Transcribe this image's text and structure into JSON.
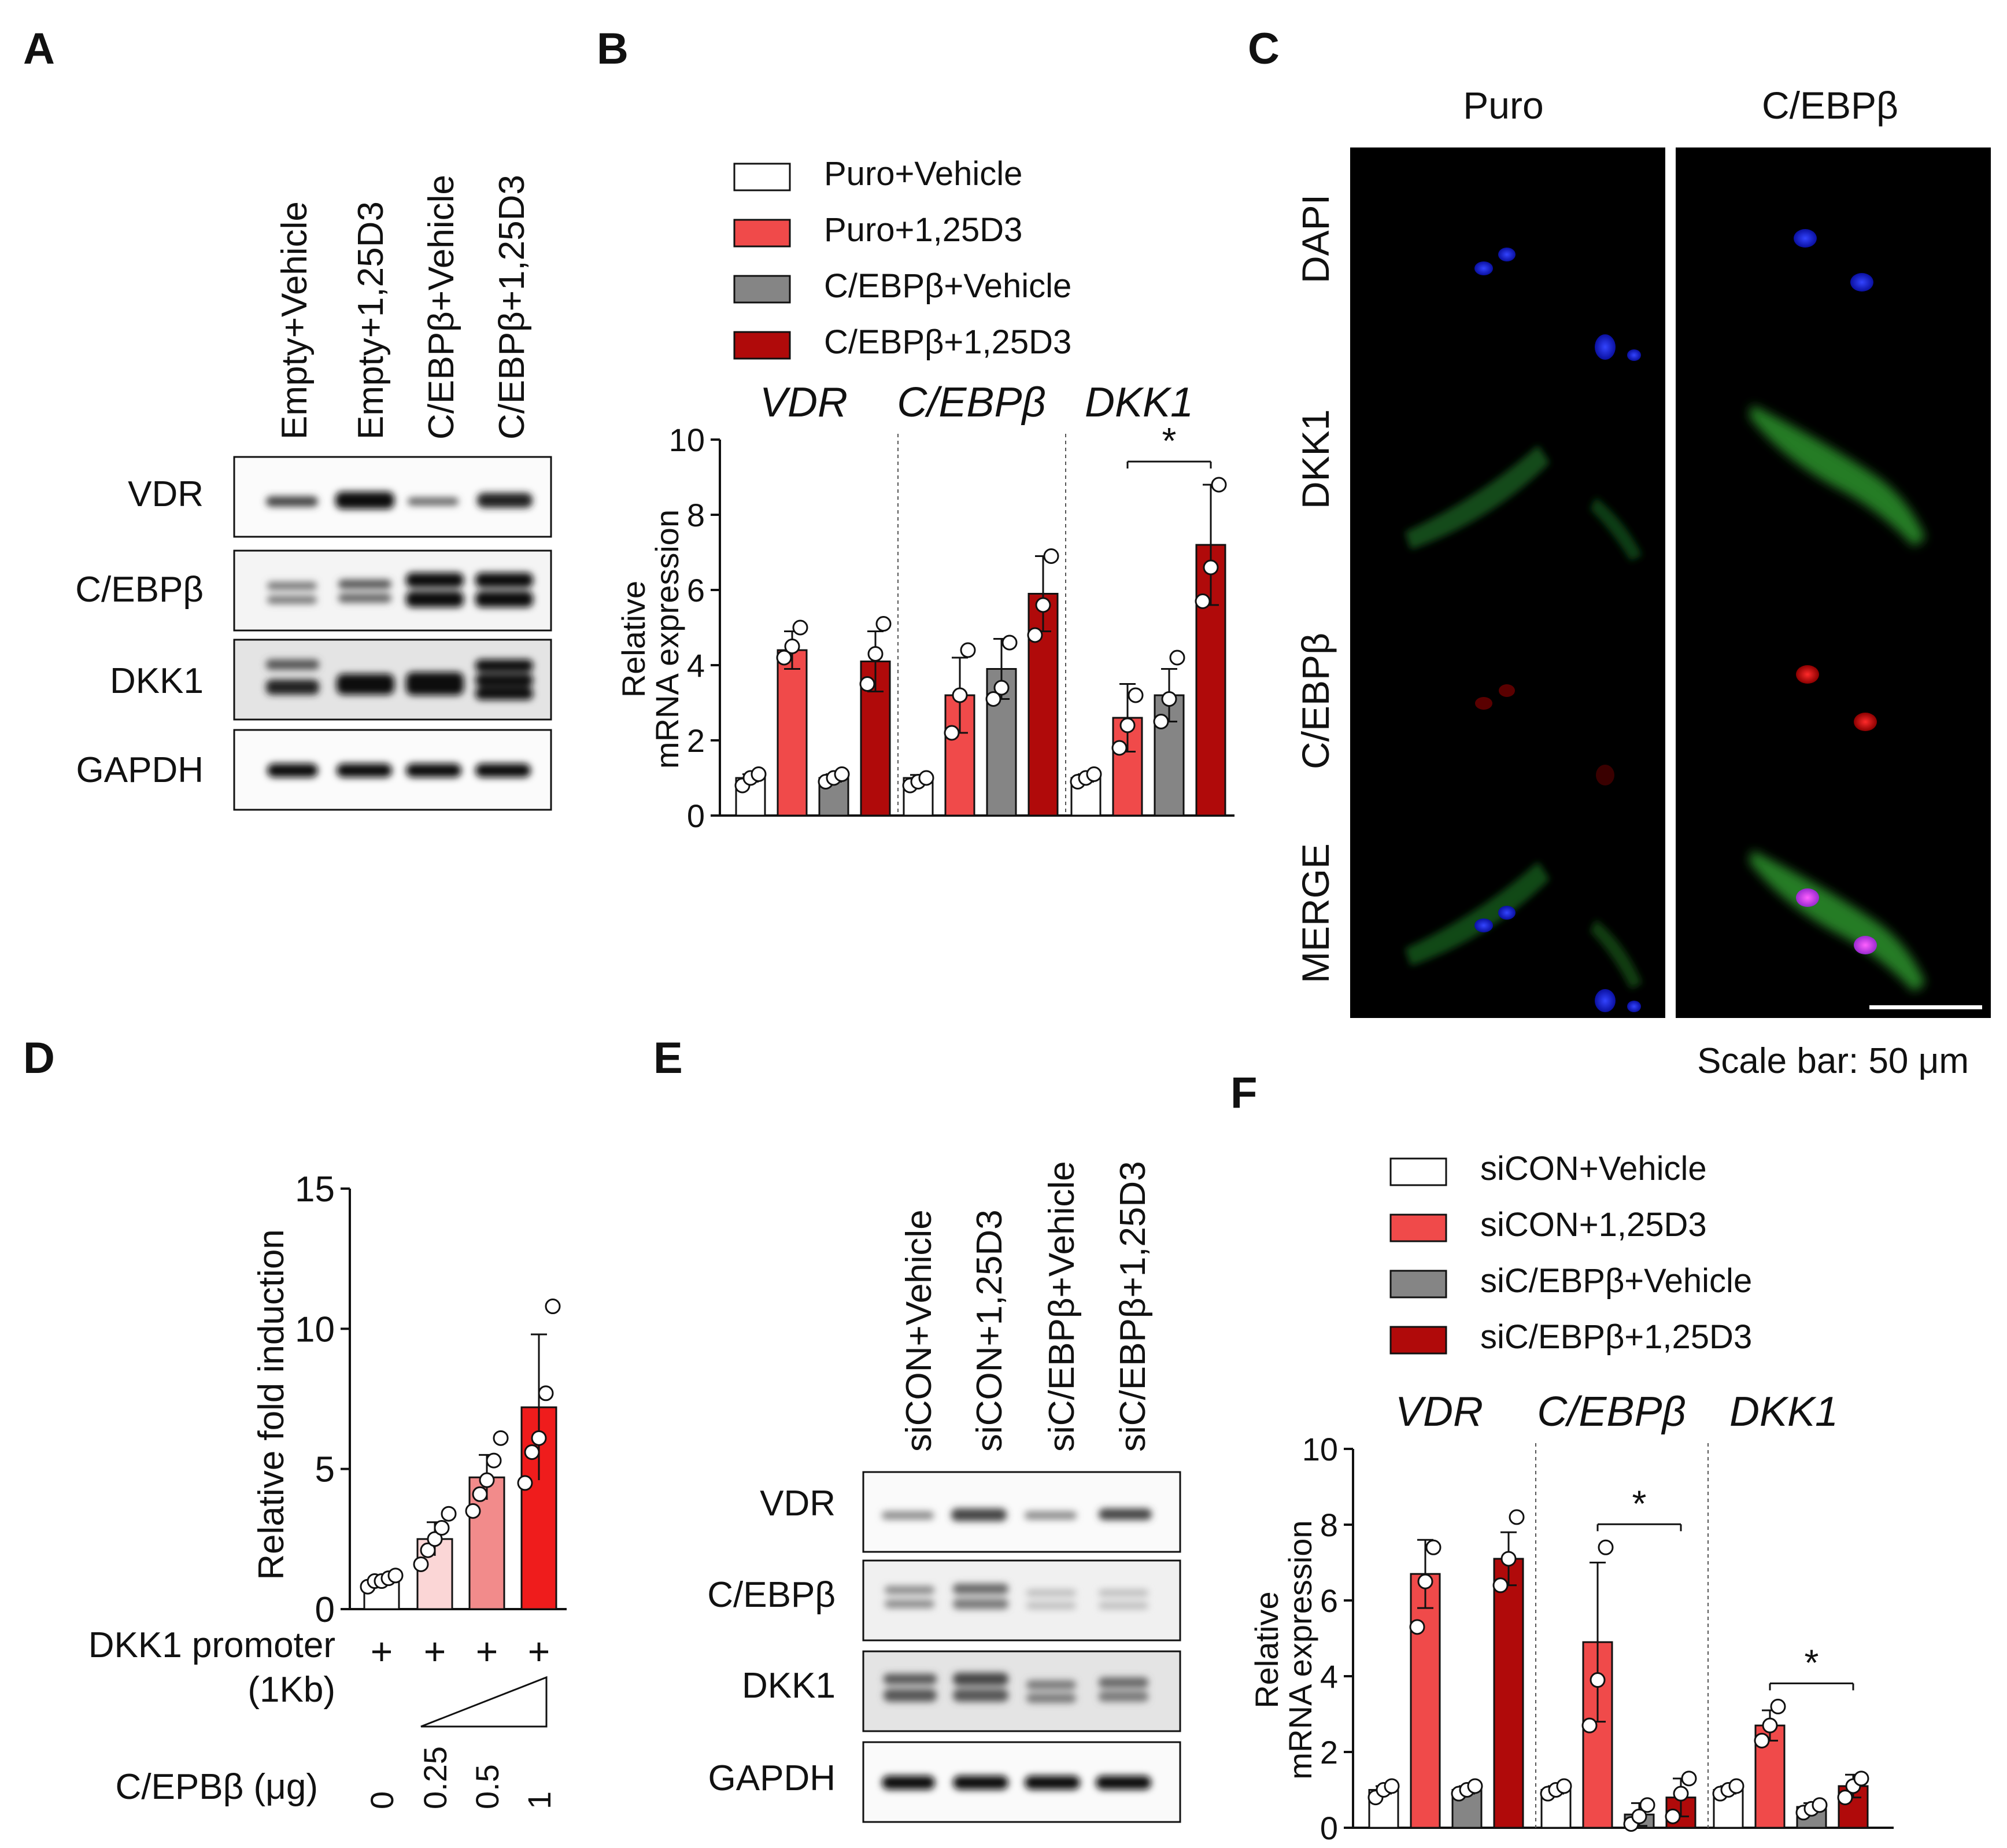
{
  "panels": {
    "a": "A",
    "b": "B",
    "c": "C",
    "d": "D",
    "e": "E",
    "f": "F"
  },
  "colors": {
    "white": "#ffffff",
    "light_red": "#f04a4a",
    "gray": "#858585",
    "dark_red": "#b00a0a",
    "d_pale": "#fbd6d6",
    "d_mid": "#f28b8b",
    "d_strong": "#ef1c1c"
  },
  "blot_a": {
    "lanes": [
      "Empty+Vehicle",
      "Empty+1,25D3",
      "C/EBPβ+Vehicle",
      "C/EBPβ+1,25D3"
    ],
    "rows": [
      "VDR",
      "C/EBPβ",
      "DKK1",
      "GAPDH"
    ]
  },
  "blot_e": {
    "lanes": [
      "siCON+Vehicle",
      "siCON+1,25D3",
      "siC/EBPβ+Vehicle",
      "siC/EBPβ+1,25D3"
    ],
    "rows": [
      "VDR",
      "C/EBPβ",
      "DKK1",
      "GAPDH"
    ]
  },
  "panel_c": {
    "columns": [
      "Puro",
      "C/EBPβ"
    ],
    "rows": [
      {
        "label": "DAPI",
        "color": "#1a7fd6"
      },
      {
        "label": "DKK1",
        "color": "#1aa64a"
      },
      {
        "label": "C/EBPβ",
        "color": "#ee2222"
      },
      {
        "label": "MERGE",
        "color": "#f2b31c"
      }
    ],
    "scale_bar": "Scale bar: 50 μm"
  },
  "chart_data": [
    {
      "id": "B",
      "type": "bar",
      "ylabel_line1": "Relative",
      "ylabel_line2": "mRNA expression",
      "ylim": [
        0,
        10
      ],
      "yticks": [
        "0",
        "2",
        "4",
        "6",
        "8",
        "10"
      ],
      "groups": [
        "VDR",
        "C/EBPβ",
        "DKK1"
      ],
      "series": [
        {
          "name": "Puro+Vehicle",
          "values": [
            1.0,
            1.0,
            1.0
          ],
          "errors": [
            0.1,
            0.08,
            0.1
          ]
        },
        {
          "name": "Puro+1,25D3",
          "values": [
            4.4,
            3.2,
            2.6
          ],
          "errors": [
            0.5,
            1.0,
            0.9
          ]
        },
        {
          "name": "C/EBPβ+Vehicle",
          "values": [
            1.0,
            3.9,
            3.2
          ],
          "errors": [
            0.1,
            0.8,
            0.7
          ]
        },
        {
          "name": "C/EBPβ+1,25D3",
          "values": [
            4.1,
            5.9,
            7.2
          ],
          "errors": [
            0.8,
            1.0,
            1.6
          ]
        }
      ],
      "points": [
        [
          [
            0.8,
            1.0,
            1.1
          ],
          [
            4.2,
            4.5,
            5.0
          ],
          [
            0.9,
            1.0,
            1.1
          ],
          [
            3.5,
            4.3,
            5.1
          ]
        ],
        [
          [
            0.8,
            0.9,
            1.0
          ],
          [
            2.2,
            3.2,
            4.4
          ],
          [
            3.1,
            3.4,
            4.6
          ],
          [
            4.8,
            5.6,
            6.9
          ]
        ],
        [
          [
            0.9,
            1.0,
            1.1
          ],
          [
            1.8,
            2.4,
            3.2
          ],
          [
            2.5,
            3.1,
            4.2
          ],
          [
            5.7,
            6.6,
            8.8
          ]
        ]
      ],
      "annotations": [
        {
          "group": 2,
          "from": 1,
          "to": 3,
          "text": "*"
        }
      ]
    },
    {
      "id": "D",
      "type": "bar",
      "ylabel": "Relative fold induction",
      "ylim": [
        0,
        15
      ],
      "yticks": [
        "0",
        "5",
        "10",
        "15"
      ],
      "categories": [
        "0",
        "0.25",
        "0.5",
        "1"
      ],
      "values": [
        1.0,
        2.5,
        4.7,
        7.2
      ],
      "errors": [
        0.2,
        0.6,
        0.8,
        2.6
      ],
      "points": [
        [
          0.8,
          1.0,
          1.0,
          1.1,
          1.2
        ],
        [
          1.6,
          2.1,
          2.5,
          2.9,
          3.4
        ],
        [
          3.5,
          4.1,
          4.6,
          5.3,
          6.1
        ],
        [
          4.5,
          5.6,
          6.1,
          7.7,
          10.8
        ]
      ],
      "row1_label": "DKK1 promoter",
      "row1_label_b": "(1Kb)",
      "row1_values": [
        "+",
        "+",
        "+",
        "+"
      ],
      "row2_label": "C/EPBβ (μg)"
    },
    {
      "id": "F",
      "type": "bar",
      "ylabel_line1": "Relative",
      "ylabel_line2": "mRNA expression",
      "ylim": [
        0,
        10
      ],
      "yticks": [
        "0",
        "2",
        "4",
        "6",
        "8",
        "10"
      ],
      "groups": [
        "VDR",
        "C/EBPβ",
        "DKK1"
      ],
      "series": [
        {
          "name": "siCON+Vehicle",
          "values": [
            1.0,
            1.0,
            1.0
          ],
          "errors": [
            0.1,
            0.1,
            0.1
          ]
        },
        {
          "name": "siCON+1,25D3",
          "values": [
            6.7,
            4.9,
            2.7
          ],
          "errors": [
            0.9,
            2.1,
            0.4
          ]
        },
        {
          "name": "siC/EBPβ+Vehicle",
          "values": [
            1.0,
            0.35,
            0.55
          ],
          "errors": [
            0.1,
            0.3,
            0.1
          ]
        },
        {
          "name": "siC/EBPβ+1,25D3",
          "values": [
            7.1,
            0.8,
            1.1
          ],
          "errors": [
            0.7,
            0.5,
            0.3
          ]
        }
      ],
      "points": [
        [
          [
            0.8,
            1.0,
            1.1
          ],
          [
            5.3,
            6.5,
            7.4
          ],
          [
            0.9,
            1.0,
            1.1
          ],
          [
            6.4,
            7.1,
            8.2
          ]
        ],
        [
          [
            0.9,
            1.0,
            1.1
          ],
          [
            2.7,
            3.9,
            7.4
          ],
          [
            0.1,
            0.3,
            0.6
          ],
          [
            0.3,
            0.9,
            1.3
          ]
        ],
        [
          [
            0.9,
            1.0,
            1.1
          ],
          [
            2.3,
            2.7,
            3.2
          ],
          [
            0.4,
            0.5,
            0.6
          ],
          [
            0.8,
            1.1,
            1.3
          ]
        ]
      ],
      "annotations": [
        {
          "group": 1,
          "from": 1,
          "to": 3,
          "text": "*"
        },
        {
          "group": 2,
          "from": 1,
          "to": 3,
          "text": "*"
        }
      ]
    }
  ]
}
